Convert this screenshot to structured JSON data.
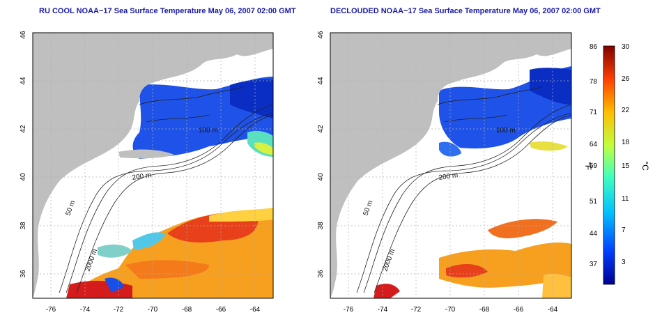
{
  "panels": {
    "left": {
      "title": "RU COOL NOAA−17 Sea Surface Temperature May 06, 2007 02:00 GMT"
    },
    "right": {
      "title": "DECLOUDED NOAA−17 Sea Surface Temperature May 06, 2007 02:00 GMT"
    }
  },
  "map_axes": {
    "lon_ticks": [
      "-76",
      "-74",
      "-72",
      "-70",
      "-68",
      "-66",
      "-64"
    ],
    "lat_ticks": [
      "36",
      "38",
      "40",
      "42",
      "44",
      "46"
    ],
    "lon_range": [
      -77,
      -63
    ],
    "lat_range": [
      35,
      46
    ]
  },
  "contours": {
    "label_50": "50 m",
    "label_100": "100 m",
    "label_200": "200 m",
    "label_2000": "2000 m"
  },
  "colorbar": {
    "f_label": "°F",
    "c_label": "°C",
    "f_ticks": [
      "86",
      "78",
      "71",
      "64",
      "59",
      "51",
      "44",
      "37"
    ],
    "c_ticks": [
      "30",
      "26",
      "22",
      "18",
      "15",
      "11",
      "7",
      "3"
    ],
    "colors": [
      "#00008f",
      "#0040ff",
      "#00c0ff",
      "#40ffbf",
      "#bfff40",
      "#ffc000",
      "#ff4000",
      "#800000"
    ]
  },
  "palette": {
    "land": "#bfbfbf",
    "title": "#1a1aa6"
  }
}
